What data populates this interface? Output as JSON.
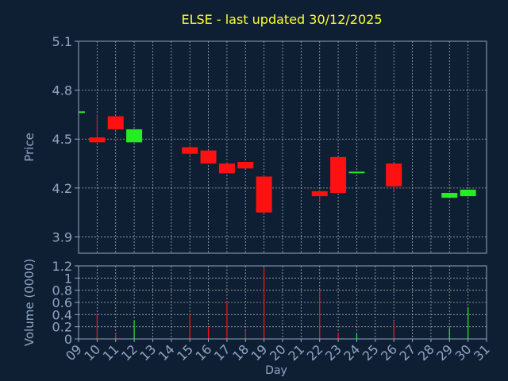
{
  "colors": {
    "background": "#0f1f33",
    "grid": "#c8c8c8",
    "title": "#ffff33",
    "axis_text": "#8fa6c4",
    "up": "#22ee22",
    "down": "#ff1111",
    "frame": "#8fa6c4"
  },
  "chart_data": [
    {
      "type": "candlestick",
      "title": "ELSE - last updated 30/12/2025",
      "ylabel": "Price",
      "ylim": [
        3.8,
        5.1
      ],
      "yticks": [
        "3.9",
        "4.2",
        "4.5",
        "4.8",
        "5.1"
      ],
      "ytick_values": [
        3.9,
        4.2,
        4.5,
        4.8,
        5.1
      ],
      "grid": true,
      "candles": [
        {
          "day": "09",
          "open": 4.67,
          "high": 4.68,
          "low": 4.67,
          "close": 4.67
        },
        {
          "day": "10",
          "open": 4.51,
          "high": 4.65,
          "low": 4.49,
          "close": 4.48
        },
        {
          "day": "11",
          "open": 4.64,
          "high": 4.64,
          "low": 4.55,
          "close": 4.56
        },
        {
          "day": "12",
          "open": 4.48,
          "high": 4.56,
          "low": 4.48,
          "close": 4.56
        },
        {
          "day": "15",
          "open": 4.45,
          "high": 4.46,
          "low": 4.4,
          "close": 4.41
        },
        {
          "day": "16",
          "open": 4.43,
          "high": 4.43,
          "low": 4.35,
          "close": 4.35
        },
        {
          "day": "17",
          "open": 4.35,
          "high": 4.36,
          "low": 4.29,
          "close": 4.29
        },
        {
          "day": "18",
          "open": 4.36,
          "high": 4.36,
          "low": 4.32,
          "close": 4.32
        },
        {
          "day": "19",
          "open": 4.27,
          "high": 4.28,
          "low": 4.05,
          "close": 4.05
        },
        {
          "day": "22",
          "open": 4.18,
          "high": 4.19,
          "low": 4.12,
          "close": 4.15
        },
        {
          "day": "23",
          "open": 4.39,
          "high": 4.39,
          "low": 4.17,
          "close": 4.17
        },
        {
          "day": "24",
          "open": 4.3,
          "high": 4.3,
          "low": 4.29,
          "close": 4.3
        },
        {
          "day": "26",
          "open": 4.35,
          "high": 4.35,
          "low": 4.18,
          "close": 4.21
        },
        {
          "day": "29",
          "open": 4.14,
          "high": 4.17,
          "low": 4.14,
          "close": 4.17
        },
        {
          "day": "30",
          "open": 4.15,
          "high": 4.19,
          "low": 4.15,
          "close": 4.19
        }
      ]
    },
    {
      "type": "bar",
      "xlabel": "Day",
      "ylabel": "Volume (0000)",
      "ylim": [
        0,
        1.2
      ],
      "yticks": [
        "0",
        "0.2",
        "0.4",
        "0.6",
        "0.8",
        "1",
        "1.2"
      ],
      "ytick_values": [
        0,
        0.2,
        0.4,
        0.6,
        0.8,
        1.0,
        1.2
      ],
      "grid": true,
      "categories": [
        "09",
        "10",
        "11",
        "12",
        "13",
        "14",
        "15",
        "16",
        "17",
        "18",
        "19",
        "20",
        "21",
        "22",
        "23",
        "24",
        "25",
        "26",
        "27",
        "28",
        "29",
        "30",
        "31"
      ],
      "values": [
        {
          "day": "10",
          "value": 0.42,
          "direction": "down"
        },
        {
          "day": "11",
          "value": 0.1,
          "direction": "down"
        },
        {
          "day": "12",
          "value": 0.3,
          "direction": "up"
        },
        {
          "day": "15",
          "value": 0.42,
          "direction": "down"
        },
        {
          "day": "16",
          "value": 0.2,
          "direction": "down"
        },
        {
          "day": "17",
          "value": 0.62,
          "direction": "down"
        },
        {
          "day": "18",
          "value": 0.14,
          "direction": "down"
        },
        {
          "day": "19",
          "value": 1.17,
          "direction": "down"
        },
        {
          "day": "22",
          "value": 0.8,
          "direction": "down"
        },
        {
          "day": "23",
          "value": 0.1,
          "direction": "down"
        },
        {
          "day": "24",
          "value": 0.08,
          "direction": "up"
        },
        {
          "day": "26",
          "value": 0.28,
          "direction": "down"
        },
        {
          "day": "29",
          "value": 0.18,
          "direction": "up"
        },
        {
          "day": "30",
          "value": 0.52,
          "direction": "up"
        }
      ]
    }
  ]
}
